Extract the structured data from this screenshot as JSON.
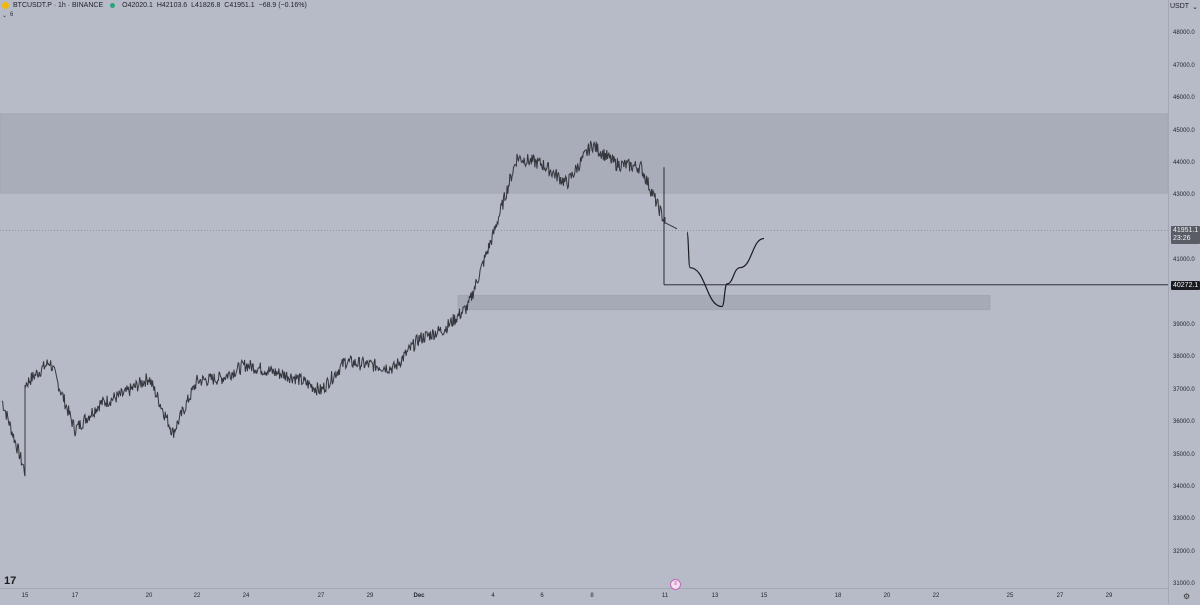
{
  "header": {
    "symbol": "BTCUSDT.P · 1h · BINANCE",
    "ohlc": {
      "open": "O42020.1",
      "high": "H42103.6",
      "low": "L41826.8",
      "close": "C41951.1",
      "change": "−68.9 (−0.16%)"
    },
    "sub_label": "6",
    "currency": "USDT",
    "currency_caret": "⌄"
  },
  "price_axis": {
    "labels": [
      "48000.0",
      "47000.0",
      "46000.0",
      "45000.0",
      "44000.0",
      "43000.0",
      "41000.0",
      "39000.0",
      "38000.0",
      "37000.0",
      "36000.0",
      "35000.0",
      "34000.0",
      "33000.0",
      "32000.0",
      "31000.0"
    ],
    "current_price": "41951.1",
    "countdown": "23:26",
    "line_price": "40272.1"
  },
  "time_axis": {
    "labels": [
      "15",
      "17",
      "20",
      "22",
      "24",
      "27",
      "29",
      "Dec",
      "4",
      "6",
      "8",
      "11",
      "13",
      "15",
      "18",
      "20",
      "22",
      "25",
      "27",
      "29"
    ]
  },
  "chart_data": {
    "type": "line",
    "symbol": "BTCUSDT.P",
    "interval": "1h",
    "exchange": "BINANCE",
    "last_price": 41951.1,
    "horizontal_line_price": 40272.1,
    "zones": [
      {
        "from": 43100,
        "to": 45550
      },
      {
        "from": 39500,
        "to": 39950
      }
    ],
    "price_path": [
      [
        "Nov 14",
        36700
      ],
      [
        "Nov 15",
        34500
      ],
      [
        "Nov 15",
        37200
      ],
      [
        "Nov 16",
        37900
      ],
      [
        "Nov 17",
        35800
      ],
      [
        "Nov 18",
        36600
      ],
      [
        "Nov 19",
        36900
      ],
      [
        "Nov 20",
        37400
      ],
      [
        "Nov 21",
        35700
      ],
      [
        "Nov 22",
        37300
      ],
      [
        "Nov 23",
        37400
      ],
      [
        "Nov 24",
        37800
      ],
      [
        "Nov 25",
        37600
      ],
      [
        "Nov 26",
        37400
      ],
      [
        "Nov 27",
        37000
      ],
      [
        "Nov 28",
        37900
      ],
      [
        "Nov 29",
        37800
      ],
      [
        "Nov 30",
        37700
      ],
      [
        "Dec 1",
        38600
      ],
      [
        "Dec 2",
        38900
      ],
      [
        "Dec 3",
        39600
      ],
      [
        "Dec 4",
        41800
      ],
      [
        "Dec 5",
        44200
      ],
      [
        "Dec 6",
        44000
      ],
      [
        "Dec 7",
        43400
      ],
      [
        "Dec 8",
        44600
      ],
      [
        "Dec 9",
        44000
      ],
      [
        "Dec 10",
        43900
      ],
      [
        "Dec 11",
        42200
      ],
      [
        "Dec 11",
        42000
      ]
    ],
    "projection_path": [
      [
        "Dec 11",
        41900
      ],
      [
        "Dec 12",
        40800
      ],
      [
        "Dec 13",
        39600
      ],
      [
        "Dec 13",
        40300
      ],
      [
        "Dec 14",
        40800
      ],
      [
        "Dec 15",
        41700
      ]
    ]
  }
}
